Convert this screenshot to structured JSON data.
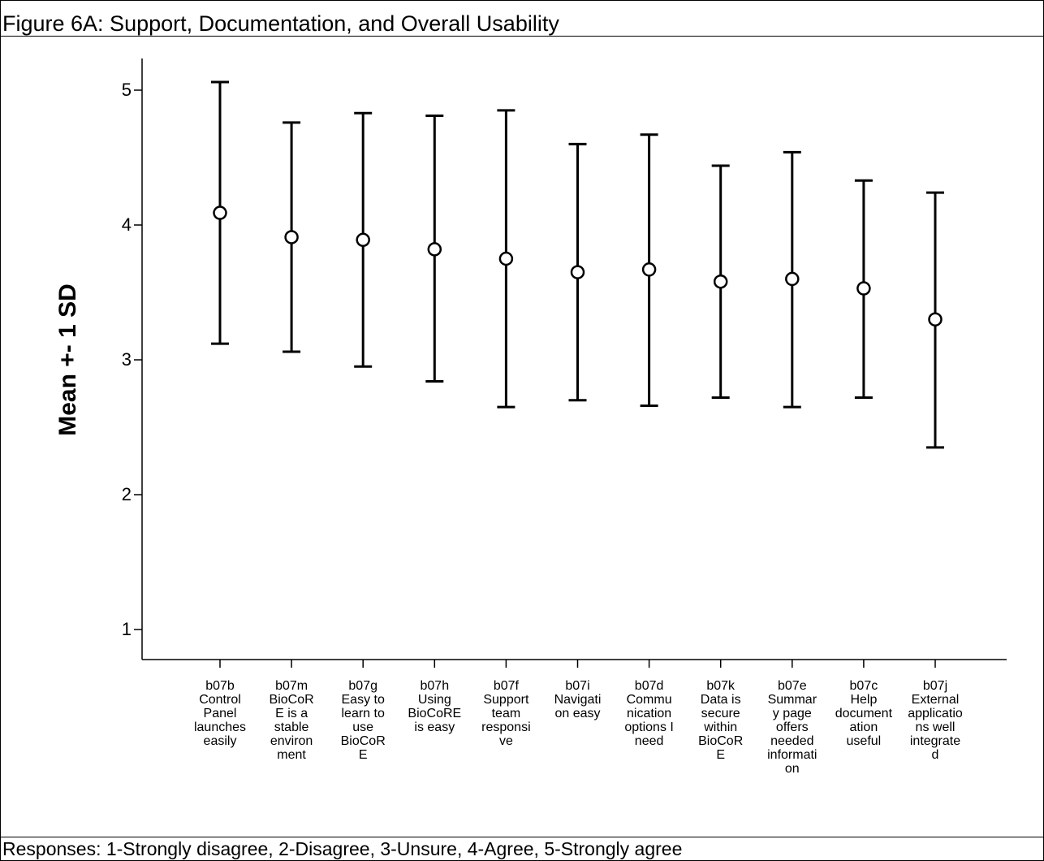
{
  "title": "Figure 6A:  Support, Documentation, and Overall Usability",
  "footer": "Responses: 1-Strongly disagree, 2-Disagree, 3-Unsure, 4-Agree, 5-Strongly agree",
  "chart_data": {
    "type": "scatter",
    "error_bars": "±1 SD",
    "title": "",
    "xlabel": "",
    "ylabel": "Mean +- 1 SD",
    "ylim": [
      0.8,
      5.22
    ],
    "yticks": [
      1,
      2,
      3,
      4,
      5
    ],
    "categories": [
      "b07b Control Panel launches easily",
      "b07m BioCoRE is a stable environment",
      "b07g Easy to learn to use BioCoRE",
      "b07h Using BioCoRE is easy",
      "b07f Support team responsive",
      "b07i Navigation easy",
      "b07d Communication options I need",
      "b07k Data is secure within BioCoRE",
      "b07e Summary page offers needed information",
      "b07c Help documentation useful",
      "b07j External applications well integrated"
    ],
    "category_label_lines": [
      [
        "b07b",
        "Control",
        "Panel",
        "launches",
        "easily"
      ],
      [
        "b07m",
        "BioCoR",
        "E is a",
        "stable",
        "environ",
        "ment"
      ],
      [
        "b07g",
        "Easy to",
        "learn to",
        "use",
        "BioCoR",
        "E"
      ],
      [
        "b07h",
        "Using",
        "BioCoRE",
        "is easy"
      ],
      [
        "b07f",
        "Support",
        "team",
        "responsi",
        "ve"
      ],
      [
        "b07i",
        "Navigati",
        "on easy"
      ],
      [
        "b07d",
        "Commu",
        "nication",
        "options I",
        "need"
      ],
      [
        "b07k",
        "Data is",
        "secure",
        "within",
        "BioCoR",
        "E"
      ],
      [
        "b07e",
        "Summar",
        "y page",
        "offers",
        "needed",
        "informati",
        "on"
      ],
      [
        "b07c",
        "Help",
        "document",
        "ation",
        "useful"
      ],
      [
        "b07j",
        "External",
        "applicatio",
        "ns  well",
        "integrate",
        "d"
      ]
    ],
    "series": [
      {
        "mean": [
          4.09,
          3.91,
          3.89,
          3.82,
          3.75,
          3.65,
          3.67,
          3.58,
          3.6,
          3.53,
          3.3
        ],
        "lower": [
          3.12,
          3.06,
          2.95,
          2.84,
          2.65,
          2.7,
          2.66,
          2.72,
          2.65,
          2.72,
          2.35
        ],
        "upper": [
          5.06,
          4.76,
          4.83,
          4.81,
          4.85,
          4.6,
          4.67,
          4.44,
          4.54,
          4.33,
          4.24
        ]
      }
    ],
    "grid": false,
    "legend": "none"
  }
}
